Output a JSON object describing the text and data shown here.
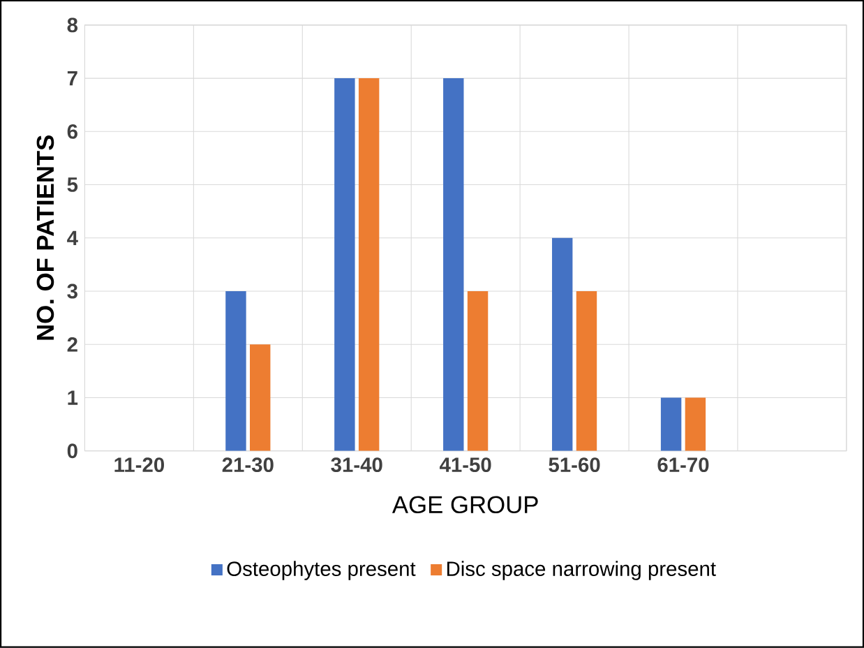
{
  "chart_data": {
    "type": "bar",
    "xlabel": "AGE GROUP",
    "ylabel": "NO. OF PATIENTS",
    "categories": [
      "11-20",
      "21-30",
      "31-40",
      "41-50",
      "51-60",
      "61-70",
      null
    ],
    "series": [
      {
        "name": "Osteophytes present",
        "color": "#4472c4",
        "values": [
          0,
          3,
          7,
          7,
          4,
          1,
          0
        ]
      },
      {
        "name": "Disc space narrowing present",
        "color": "#ed7d31",
        "values": [
          0,
          2,
          7,
          3,
          3,
          1,
          0
        ]
      }
    ],
    "ylim": [
      0,
      8
    ],
    "yticks": [
      0,
      1,
      2,
      3,
      4,
      5,
      6,
      7,
      8
    ],
    "grid": true,
    "legend": "bottom"
  }
}
